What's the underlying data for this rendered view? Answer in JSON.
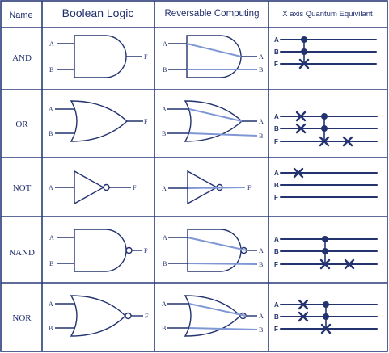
{
  "headers": {
    "name": "Name",
    "boolean": "Boolean Logic",
    "reversable": "Reversable Computing",
    "quantum": "X axis Quantum Equivilant"
  },
  "rows": [
    {
      "name": "AND",
      "boolean": {
        "in": [
          "A",
          "B"
        ],
        "out": "F"
      },
      "reversable": {
        "in": [
          "A",
          "B"
        ],
        "out": [
          "A",
          "B"
        ]
      },
      "quantum": [
        "A",
        "B",
        "F"
      ]
    },
    {
      "name": "OR",
      "boolean": {
        "in": [
          "A",
          "B"
        ],
        "out": "F"
      },
      "reversable": {
        "in": [
          "A",
          "B"
        ],
        "out": [
          "A",
          "B"
        ]
      },
      "quantum": [
        "A",
        "B",
        "F"
      ]
    },
    {
      "name": "NOT",
      "boolean": {
        "in": [
          "A"
        ],
        "out": "F"
      },
      "reversable": {
        "in": [
          "A"
        ],
        "out": [
          "F"
        ]
      },
      "quantum": [
        "A",
        "B",
        "F"
      ]
    },
    {
      "name": "NAND",
      "boolean": {
        "in": [
          "A",
          "B"
        ],
        "out": "F"
      },
      "reversable": {
        "in": [
          "A",
          "B"
        ],
        "out": [
          "A",
          "B"
        ]
      },
      "quantum": [
        "A",
        "B",
        "F"
      ]
    },
    {
      "name": "NOR",
      "boolean": {
        "in": [
          "A",
          "B"
        ],
        "out": "F"
      },
      "reversable": {
        "in": [
          "A",
          "B"
        ],
        "out": [
          "A",
          "B"
        ]
      },
      "quantum": [
        "A",
        "B",
        "F"
      ]
    }
  ],
  "colors": {
    "ink": "#1f2d6b",
    "wire": "#23336f",
    "accent": "#7f97d4",
    "border": "#2a3a78"
  }
}
